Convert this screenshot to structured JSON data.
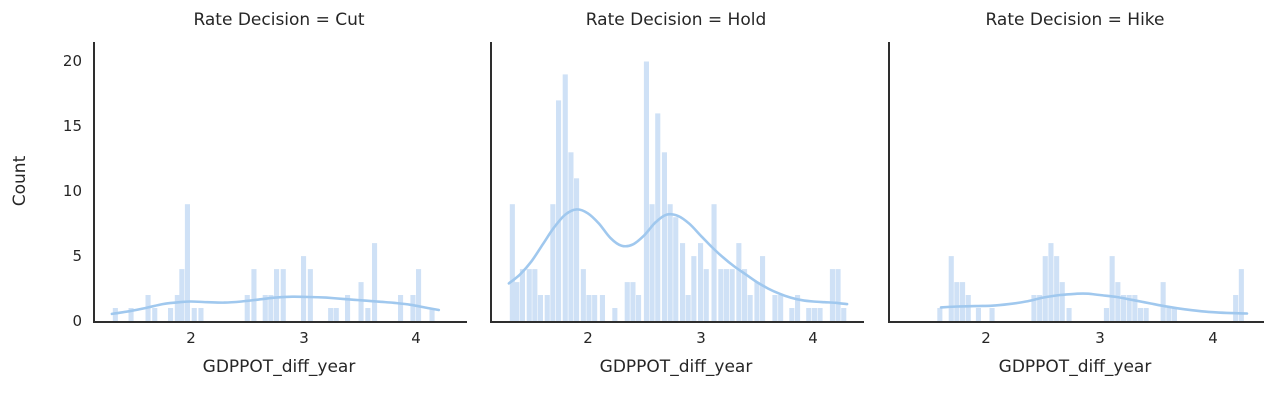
{
  "figure": {
    "background": "#ffffff",
    "text_color": "#262626",
    "spine_color": "#2e2e2e",
    "bar_color": "#cfe1f6",
    "kde_color": "#a0c8ee"
  },
  "axes": {
    "ylabel": "Count",
    "xlabel": "GDPPOT_diff_year",
    "x_ticks": [
      2,
      3,
      4
    ],
    "y_ticks": [
      0,
      5,
      10,
      15,
      20
    ],
    "xlim": [
      1.15,
      4.45
    ],
    "ylim": [
      0,
      21.5
    ]
  },
  "chart_data": [
    {
      "type": "histogram+kde",
      "title": "Rate Decision = Cut",
      "xlabel": "GDPPOT_diff_year",
      "ylabel": "Count",
      "x_ticks": [
        2,
        3,
        4
      ],
      "y_ticks": [
        0,
        5,
        10,
        15,
        20
      ],
      "xlim": [
        1.15,
        4.45
      ],
      "ylim": [
        0,
        21.5
      ],
      "bin_width": 0.052,
      "legend": "none",
      "grid": false,
      "bars": [
        [
          1.33,
          1
        ],
        [
          1.47,
          1
        ],
        [
          1.62,
          2
        ],
        [
          1.68,
          1
        ],
        [
          1.82,
          1
        ],
        [
          1.88,
          2
        ],
        [
          1.92,
          4
        ],
        [
          1.97,
          9
        ],
        [
          2.03,
          1
        ],
        [
          2.09,
          1
        ],
        [
          2.5,
          2
        ],
        [
          2.56,
          4
        ],
        [
          2.66,
          2
        ],
        [
          2.71,
          2
        ],
        [
          2.76,
          4
        ],
        [
          2.82,
          4
        ],
        [
          3.0,
          5
        ],
        [
          3.06,
          4
        ],
        [
          3.24,
          1
        ],
        [
          3.29,
          1
        ],
        [
          3.39,
          2
        ],
        [
          3.51,
          3
        ],
        [
          3.57,
          1
        ],
        [
          3.63,
          6
        ],
        [
          3.86,
          2
        ],
        [
          3.97,
          2
        ],
        [
          4.02,
          4
        ],
        [
          4.14,
          1
        ]
      ],
      "kde": [
        [
          1.3,
          0.55
        ],
        [
          1.45,
          0.75
        ],
        [
          1.6,
          1.0
        ],
        [
          1.75,
          1.3
        ],
        [
          1.9,
          1.45
        ],
        [
          2.0,
          1.5
        ],
        [
          2.15,
          1.45
        ],
        [
          2.3,
          1.42
        ],
        [
          2.45,
          1.5
        ],
        [
          2.6,
          1.65
        ],
        [
          2.75,
          1.8
        ],
        [
          2.9,
          1.87
        ],
        [
          3.05,
          1.85
        ],
        [
          3.2,
          1.8
        ],
        [
          3.35,
          1.7
        ],
        [
          3.5,
          1.6
        ],
        [
          3.65,
          1.5
        ],
        [
          3.8,
          1.4
        ],
        [
          3.95,
          1.25
        ],
        [
          4.1,
          1.0
        ],
        [
          4.2,
          0.85
        ]
      ]
    },
    {
      "type": "histogram+kde",
      "title": "Rate Decision = Hold",
      "xlabel": "GDPPOT_diff_year",
      "x_ticks": [
        2,
        3,
        4
      ],
      "xlim": [
        1.15,
        4.45
      ],
      "ylim": [
        0,
        21.5
      ],
      "bin_width": 0.052,
      "legend": "none",
      "grid": false,
      "bars": [
        [
          1.33,
          9
        ],
        [
          1.37,
          3
        ],
        [
          1.42,
          4
        ],
        [
          1.48,
          4
        ],
        [
          1.53,
          4
        ],
        [
          1.58,
          2
        ],
        [
          1.64,
          2
        ],
        [
          1.69,
          9
        ],
        [
          1.74,
          17
        ],
        [
          1.8,
          19
        ],
        [
          1.85,
          13
        ],
        [
          1.9,
          11
        ],
        [
          1.96,
          4
        ],
        [
          2.01,
          2
        ],
        [
          2.06,
          2
        ],
        [
          2.13,
          2
        ],
        [
          2.24,
          1
        ],
        [
          2.35,
          3
        ],
        [
          2.4,
          3
        ],
        [
          2.45,
          2
        ],
        [
          2.52,
          20
        ],
        [
          2.57,
          9
        ],
        [
          2.62,
          16
        ],
        [
          2.68,
          13
        ],
        [
          2.73,
          9
        ],
        [
          2.78,
          8
        ],
        [
          2.84,
          6
        ],
        [
          2.89,
          2
        ],
        [
          2.94,
          5
        ],
        [
          3.0,
          6
        ],
        [
          3.05,
          4
        ],
        [
          3.12,
          9
        ],
        [
          3.18,
          4
        ],
        [
          3.23,
          4
        ],
        [
          3.28,
          4
        ],
        [
          3.34,
          6
        ],
        [
          3.39,
          4
        ],
        [
          3.44,
          2
        ],
        [
          3.5,
          3
        ],
        [
          3.55,
          5
        ],
        [
          3.66,
          2
        ],
        [
          3.71,
          2
        ],
        [
          3.81,
          1
        ],
        [
          3.86,
          2
        ],
        [
          3.96,
          1
        ],
        [
          4.01,
          1
        ],
        [
          4.06,
          1
        ],
        [
          4.17,
          4
        ],
        [
          4.22,
          4
        ],
        [
          4.27,
          1
        ]
      ],
      "kde": [
        [
          1.3,
          2.9
        ],
        [
          1.4,
          3.6
        ],
        [
          1.5,
          4.6
        ],
        [
          1.6,
          5.9
        ],
        [
          1.7,
          7.2
        ],
        [
          1.8,
          8.2
        ],
        [
          1.9,
          8.6
        ],
        [
          2.0,
          8.3
        ],
        [
          2.1,
          7.5
        ],
        [
          2.2,
          6.4
        ],
        [
          2.3,
          5.8
        ],
        [
          2.4,
          5.9
        ],
        [
          2.5,
          6.6
        ],
        [
          2.6,
          7.6
        ],
        [
          2.7,
          8.2
        ],
        [
          2.8,
          8.1
        ],
        [
          2.9,
          7.5
        ],
        [
          3.0,
          6.6
        ],
        [
          3.1,
          5.7
        ],
        [
          3.2,
          4.9
        ],
        [
          3.3,
          4.2
        ],
        [
          3.4,
          3.6
        ],
        [
          3.5,
          3.0
        ],
        [
          3.6,
          2.5
        ],
        [
          3.7,
          2.1
        ],
        [
          3.8,
          1.8
        ],
        [
          3.9,
          1.6
        ],
        [
          4.0,
          1.5
        ],
        [
          4.1,
          1.45
        ],
        [
          4.2,
          1.4
        ],
        [
          4.3,
          1.3
        ]
      ]
    },
    {
      "type": "histogram+kde",
      "title": "Rate Decision = Hike",
      "xlabel": "GDPPOT_diff_year",
      "x_ticks": [
        2,
        3,
        4
      ],
      "xlim": [
        1.15,
        4.45
      ],
      "ylim": [
        0,
        21.5
      ],
      "bin_width": 0.052,
      "legend": "none",
      "grid": false,
      "bars": [
        [
          1.59,
          1
        ],
        [
          1.69,
          5
        ],
        [
          1.74,
          3
        ],
        [
          1.79,
          3
        ],
        [
          1.84,
          2
        ],
        [
          1.93,
          1
        ],
        [
          2.05,
          1
        ],
        [
          2.42,
          2
        ],
        [
          2.47,
          2
        ],
        [
          2.52,
          5
        ],
        [
          2.57,
          6
        ],
        [
          2.62,
          5
        ],
        [
          2.67,
          3
        ],
        [
          2.73,
          1
        ],
        [
          3.06,
          1
        ],
        [
          3.11,
          5
        ],
        [
          3.16,
          3
        ],
        [
          3.21,
          2
        ],
        [
          3.26,
          2
        ],
        [
          3.31,
          2
        ],
        [
          3.36,
          1
        ],
        [
          3.41,
          1
        ],
        [
          3.56,
          3
        ],
        [
          3.61,
          1
        ],
        [
          3.66,
          1
        ],
        [
          4.2,
          2
        ],
        [
          4.25,
          4
        ]
      ],
      "kde": [
        [
          1.6,
          1.05
        ],
        [
          1.75,
          1.12
        ],
        [
          1.9,
          1.15
        ],
        [
          2.05,
          1.18
        ],
        [
          2.2,
          1.3
        ],
        [
          2.35,
          1.5
        ],
        [
          2.5,
          1.8
        ],
        [
          2.65,
          2.0
        ],
        [
          2.8,
          2.1
        ],
        [
          2.9,
          2.1
        ],
        [
          3.0,
          2.0
        ],
        [
          3.15,
          1.85
        ],
        [
          3.3,
          1.6
        ],
        [
          3.45,
          1.35
        ],
        [
          3.6,
          1.1
        ],
        [
          3.75,
          0.9
        ],
        [
          3.9,
          0.75
        ],
        [
          4.05,
          0.65
        ],
        [
          4.2,
          0.6
        ],
        [
          4.3,
          0.58
        ]
      ]
    }
  ]
}
